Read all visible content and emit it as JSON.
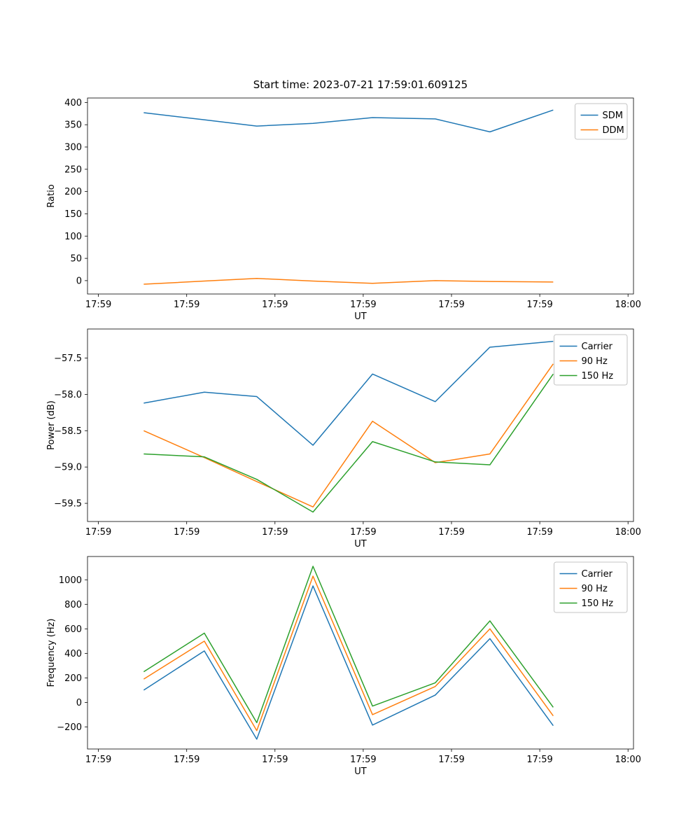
{
  "title": "Start time: 2023-07-21 17:59:01.609125",
  "colors": {
    "blue": "#1f77b4",
    "orange": "#ff7f0e",
    "green": "#2ca02c"
  },
  "chart_data": [
    {
      "name": "ratio-chart",
      "type": "line",
      "xlabel": "UT",
      "ylabel": "Ratio",
      "x_ticklabels": [
        "17:59",
        "17:59",
        "17:59",
        "17:59",
        "17:59",
        "17:59",
        "18:00"
      ],
      "yticks": [
        0,
        50,
        100,
        150,
        200,
        250,
        300,
        350,
        400
      ],
      "ytick_decimals": 0,
      "ylim": [
        -30,
        410
      ],
      "grid": false,
      "legend_position": "upper right",
      "x": [
        0.103,
        0.214,
        0.31,
        0.413,
        0.522,
        0.637,
        0.737,
        0.853
      ],
      "series": [
        {
          "name": "SDM",
          "color": "#1f77b4",
          "values": [
            377,
            361,
            347,
            353,
            366,
            363,
            334,
            383
          ]
        },
        {
          "name": "DDM",
          "color": "#ff7f0e",
          "values": [
            -8,
            -1,
            5,
            -1,
            -6,
            0,
            -2,
            -3
          ]
        }
      ]
    },
    {
      "name": "power-chart",
      "type": "line",
      "xlabel": "UT",
      "ylabel": "Power (dB)",
      "x_ticklabels": [
        "17:59",
        "17:59",
        "17:59",
        "17:59",
        "17:59",
        "17:59",
        "18:00"
      ],
      "yticks": [
        -59.5,
        -59.0,
        -58.5,
        -58.0,
        -57.5
      ],
      "ytick_decimals": 1,
      "ylim": [
        -59.75,
        -57.1
      ],
      "grid": false,
      "legend_position": "upper right",
      "x": [
        0.103,
        0.214,
        0.31,
        0.413,
        0.522,
        0.637,
        0.737,
        0.853
      ],
      "series": [
        {
          "name": "Carrier",
          "color": "#1f77b4",
          "values": [
            -58.12,
            -57.97,
            -58.03,
            -58.7,
            -57.72,
            -58.1,
            -57.35,
            -57.27
          ]
        },
        {
          "name": "90 Hz",
          "color": "#ff7f0e",
          "values": [
            -58.5,
            -58.87,
            -59.2,
            -59.55,
            -58.37,
            -58.94,
            -58.82,
            -57.58
          ]
        },
        {
          "name": "150 Hz",
          "color": "#2ca02c",
          "values": [
            -58.82,
            -58.86,
            -59.17,
            -59.62,
            -58.65,
            -58.93,
            -58.97,
            -57.72
          ]
        }
      ]
    },
    {
      "name": "frequency-chart",
      "type": "line",
      "xlabel": "UT",
      "ylabel": "Frequency (Hz)",
      "x_ticklabels": [
        "17:59",
        "17:59",
        "17:59",
        "17:59",
        "17:59",
        "17:59",
        "18:00"
      ],
      "yticks": [
        -200,
        0,
        200,
        400,
        600,
        800,
        1000
      ],
      "ytick_decimals": 0,
      "ylim": [
        -380,
        1190
      ],
      "grid": false,
      "legend_position": "upper right",
      "x": [
        0.103,
        0.214,
        0.31,
        0.413,
        0.522,
        0.637,
        0.737,
        0.853
      ],
      "series": [
        {
          "name": "Carrier",
          "color": "#1f77b4",
          "values": [
            100,
            420,
            -300,
            950,
            -185,
            60,
            520,
            -190
          ]
        },
        {
          "name": "90 Hz",
          "color": "#ff7f0e",
          "values": [
            190,
            500,
            -230,
            1030,
            -100,
            130,
            600,
            -110
          ]
        },
        {
          "name": "150 Hz",
          "color": "#2ca02c",
          "values": [
            250,
            565,
            -165,
            1110,
            -30,
            160,
            665,
            -40
          ]
        }
      ]
    }
  ]
}
